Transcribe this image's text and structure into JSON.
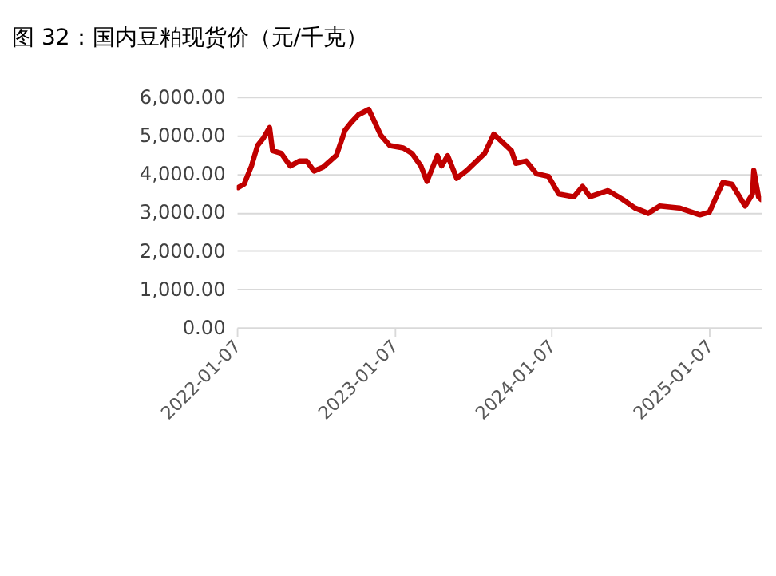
{
  "chart_data": {
    "type": "line",
    "title": "图 32：国内豆粕现货价（元/千克）",
    "x": [
      "2022-01-10",
      "2022-01-24",
      "2022-02-10",
      "2022-02-24",
      "2022-03-10",
      "2022-03-24",
      "2022-03-31",
      "2022-04-20",
      "2022-05-11",
      "2022-06-01",
      "2022-06-18",
      "2022-07-05",
      "2022-07-26",
      "2022-08-26",
      "2022-09-15",
      "2022-09-29",
      "2022-10-16",
      "2022-11-09",
      "2022-12-07",
      "2022-12-28",
      "2023-01-28",
      "2023-02-17",
      "2023-03-10",
      "2023-03-24",
      "2023-04-17",
      "2023-04-27",
      "2023-05-11",
      "2023-06-01",
      "2023-06-25",
      "2023-07-05",
      "2023-08-05",
      "2023-08-26",
      "2023-10-06",
      "2023-10-16",
      "2023-11-09",
      "2023-12-03",
      "2023-12-31",
      "2024-01-24",
      "2024-02-28",
      "2024-03-19",
      "2024-04-05",
      "2024-05-17",
      "2024-06-20",
      "2024-07-18",
      "2024-08-18",
      "2024-09-14",
      "2024-10-29",
      "2024-12-16",
      "2025-01-07",
      "2025-02-07",
      "2025-02-28",
      "2025-03-31",
      "2025-04-17",
      "2025-04-20",
      "2025-05-01",
      "2025-05-07"
    ],
    "series": [
      {
        "color": "#c00000",
        "values": [
          3640,
          3730,
          4200,
          4730,
          4930,
          5200,
          4600,
          4530,
          4200,
          4330,
          4330,
          4070,
          4170,
          4480,
          5130,
          5330,
          5530,
          5670,
          5000,
          4730,
          4670,
          4530,
          4200,
          3800,
          4470,
          4200,
          4470,
          3880,
          4090,
          4200,
          4530,
          5030,
          4600,
          4270,
          4330,
          4000,
          3930,
          3470,
          3400,
          3670,
          3400,
          3560,
          3330,
          3110,
          2970,
          3160,
          3110,
          2930,
          3000,
          3770,
          3730,
          3160,
          3470,
          4090,
          3400,
          3330
        ]
      }
    ],
    "xlim": [
      "2022-01-07",
      "2025-05-07"
    ],
    "xticks": [
      "2022-01-07",
      "2023-01-07",
      "2024-01-07",
      "2025-01-07"
    ],
    "ylim": [
      0,
      6000
    ],
    "yticks": [
      {
        "value": 0,
        "label": "0.00"
      },
      {
        "value": 1000,
        "label": "1,000.00"
      },
      {
        "value": 2000,
        "label": "2,000.00"
      },
      {
        "value": 3000,
        "label": "3,000.00"
      },
      {
        "value": 4000,
        "label": "4,000.00"
      },
      {
        "value": 5000,
        "label": "5,000.00"
      },
      {
        "value": 6000,
        "label": "6,000.00"
      }
    ],
    "grid": "y",
    "marker": "none",
    "line_style": "solid"
  }
}
